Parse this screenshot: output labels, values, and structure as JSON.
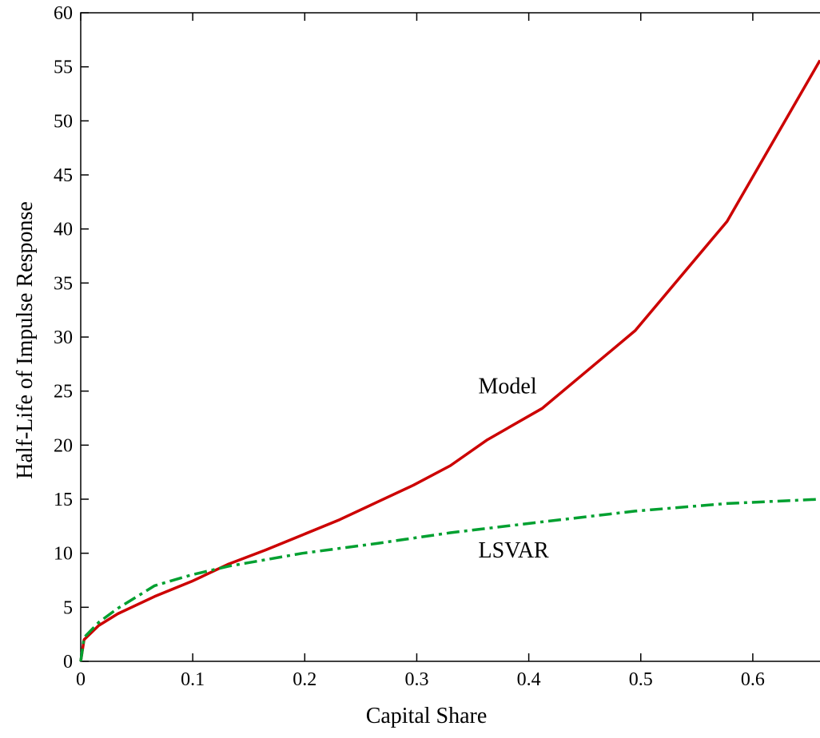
{
  "chart_data": {
    "type": "line",
    "title": "",
    "xlabel": "Capital Share",
    "ylabel": "Half-Life of Impulse Response",
    "xlim": [
      0,
      0.66
    ],
    "ylim": [
      0,
      60
    ],
    "xticks": [
      {
        "value": 0,
        "label": "0"
      },
      {
        "value": 0.1,
        "label": "0.1"
      },
      {
        "value": 0.2,
        "label": "0.2"
      },
      {
        "value": 0.3,
        "label": "0.3"
      },
      {
        "value": 0.4,
        "label": "0.4"
      },
      {
        "value": 0.5,
        "label": "0.5"
      },
      {
        "value": 0.6,
        "label": "0.6"
      }
    ],
    "yticks": [
      {
        "value": 0,
        "label": "0"
      },
      {
        "value": 5,
        "label": "5"
      },
      {
        "value": 10,
        "label": "10"
      },
      {
        "value": 15,
        "label": "15"
      },
      {
        "value": 20,
        "label": "20"
      },
      {
        "value": 25,
        "label": "25"
      },
      {
        "value": 30,
        "label": "30"
      },
      {
        "value": 35,
        "label": "35"
      },
      {
        "value": 40,
        "label": "40"
      },
      {
        "value": 45,
        "label": "45"
      },
      {
        "value": 50,
        "label": "50"
      },
      {
        "value": 55,
        "label": "55"
      },
      {
        "value": 60,
        "label": "60"
      }
    ],
    "grid": false,
    "legend": "none",
    "series": [
      {
        "name": "Model",
        "color": "#cc0000",
        "style": "solid",
        "points": [
          [
            0,
            0
          ],
          [
            0.003,
            2.0
          ],
          [
            0.016,
            3.3
          ],
          [
            0.033,
            4.4
          ],
          [
            0.066,
            6.0
          ],
          [
            0.099,
            7.4
          ],
          [
            0.132,
            9.0
          ],
          [
            0.165,
            10.3
          ],
          [
            0.198,
            11.7
          ],
          [
            0.231,
            13.1
          ],
          [
            0.264,
            14.7
          ],
          [
            0.297,
            16.3
          ],
          [
            0.33,
            18.1
          ],
          [
            0.363,
            20.5
          ],
          [
            0.412,
            23.4
          ],
          [
            0.495,
            30.6
          ],
          [
            0.577,
            40.7
          ],
          [
            0.66,
            55.6
          ]
        ]
      },
      {
        "name": "LSVAR",
        "color": "#00a030",
        "style": "dash-dot",
        "points": [
          [
            0,
            0
          ],
          [
            0.003,
            2.2
          ],
          [
            0.016,
            3.6
          ],
          [
            0.033,
            4.9
          ],
          [
            0.066,
            7.0
          ],
          [
            0.099,
            8.0
          ],
          [
            0.132,
            8.8
          ],
          [
            0.198,
            10.0
          ],
          [
            0.264,
            10.9
          ],
          [
            0.33,
            11.9
          ],
          [
            0.412,
            12.9
          ],
          [
            0.495,
            13.9
          ],
          [
            0.577,
            14.6
          ],
          [
            0.66,
            15.0
          ]
        ]
      }
    ],
    "annotations": [
      {
        "text": "Model",
        "x": 0.355,
        "y": 24.8,
        "series": "Model"
      },
      {
        "text": "LSVAR",
        "x": 0.355,
        "y": 9.6,
        "series": "LSVAR"
      }
    ]
  }
}
